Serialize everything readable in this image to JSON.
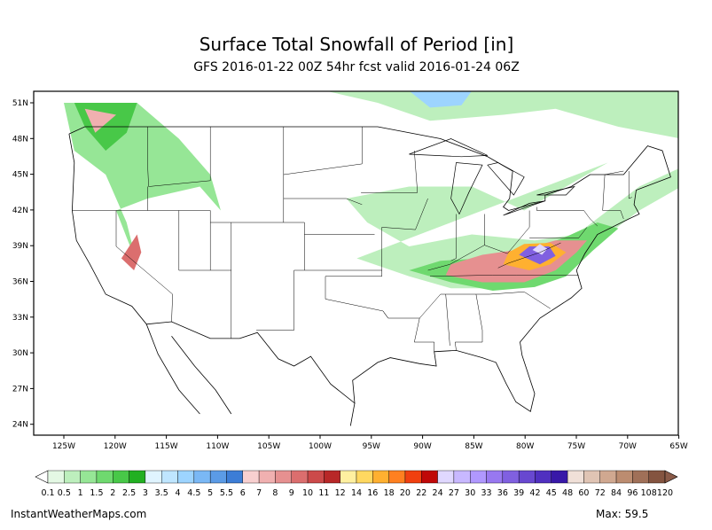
{
  "header": {
    "title": "Surface Total Snowfall of Period [in]",
    "subtitle": "GFS 2016-01-22 00Z 54hr fcst valid 2016-01-24 06Z"
  },
  "map": {
    "lat_labels": [
      "51N",
      "48N",
      "45N",
      "42N",
      "39N",
      "36N",
      "33N",
      "30N",
      "27N",
      "24N"
    ],
    "lon_labels": [
      "125W",
      "120W",
      "115W",
      "110W",
      "105W",
      "100W",
      "95W",
      "90W",
      "85W",
      "80W",
      "75W",
      "70W",
      "65W"
    ]
  },
  "legend": {
    "labels": [
      "0.1",
      "0.5",
      "1",
      "1.5",
      "2",
      "2.5",
      "3",
      "3.5",
      "4",
      "4.5",
      "5",
      "5.5",
      "6",
      "7",
      "8",
      "9",
      "10",
      "11",
      "12",
      "14",
      "16",
      "18",
      "20",
      "22",
      "24",
      "27",
      "30",
      "33",
      "36",
      "39",
      "42",
      "45",
      "48",
      "60",
      "72",
      "84",
      "96",
      "108",
      "120"
    ],
    "colors": [
      "#e4f8e4",
      "#bdefbd",
      "#96e696",
      "#6fd96f",
      "#48c848",
      "#22b022",
      "#e0f4ff",
      "#bfe6ff",
      "#9dd4ff",
      "#7ab8f5",
      "#5b9be6",
      "#3c7dd6",
      "#f8d0d0",
      "#f0b0b0",
      "#e69090",
      "#db6e6e",
      "#cc4a4a",
      "#b82828",
      "#fff0a0",
      "#ffd860",
      "#ffb030",
      "#ff8020",
      "#f04010",
      "#c00808",
      "#e0d8ff",
      "#c8b8ff",
      "#b098ff",
      "#9878f0",
      "#8060e0",
      "#6848d0",
      "#5030c0",
      "#3818a8",
      "#f0e0d8",
      "#e0c4b4",
      "#d0a890",
      "#bc8c70",
      "#a07058",
      "#845440"
    ]
  },
  "footer": {
    "source": "InstantWeatherMaps.com",
    "max": "Max:  59.5"
  }
}
